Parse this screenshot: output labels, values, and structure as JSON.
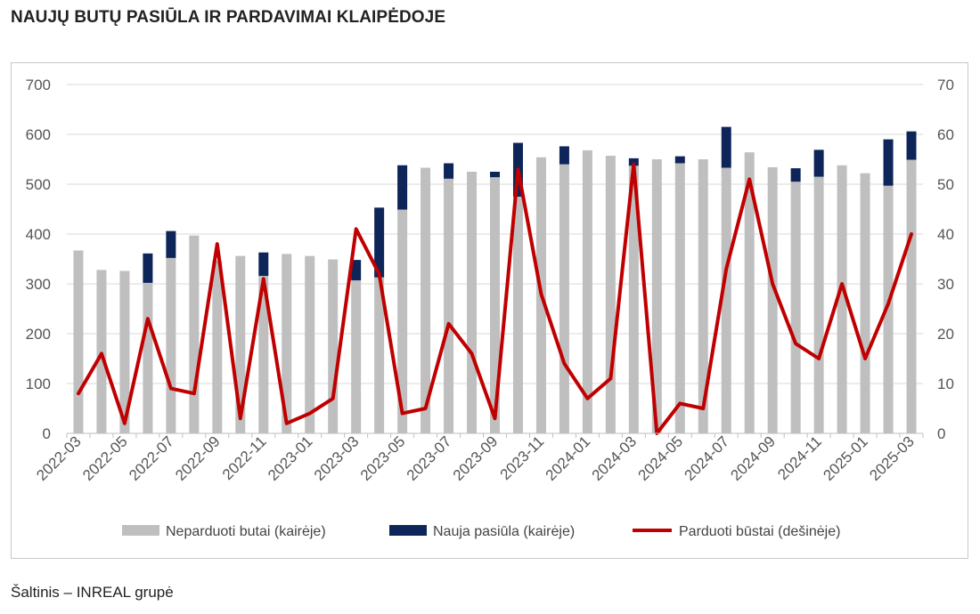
{
  "title": "NAUJŲ BUTŲ PASIŪLA IR PARDAVIMAI KLAIPĖDOJE",
  "source": "Šaltinis – INREAL grupė",
  "chart_data": {
    "type": "bar",
    "categories": [
      "2022-03",
      "2022-04",
      "2022-05",
      "2022-06",
      "2022-07",
      "2022-08",
      "2022-09",
      "2022-10",
      "2022-11",
      "2022-12",
      "2023-01",
      "2023-02",
      "2023-03",
      "2023-04",
      "2023-05",
      "2023-06",
      "2023-07",
      "2023-08",
      "2023-09",
      "2023-10",
      "2023-11",
      "2023-12",
      "2024-01",
      "2024-02",
      "2024-03",
      "2024-04",
      "2024-05",
      "2024-06",
      "2024-07",
      "2024-08",
      "2024-09",
      "2024-10",
      "2024-11",
      "2024-12",
      "2025-01",
      "2025-02",
      "2025-03"
    ],
    "tick_labels": [
      "2022-03",
      "2022-05",
      "2022-07",
      "2022-09",
      "2022-11",
      "2023-01",
      "2023-03",
      "2023-05",
      "2023-07",
      "2023-09",
      "2023-11",
      "2024-01",
      "2024-03",
      "2024-05",
      "2024-07",
      "2024-09",
      "2024-11",
      "2025-01",
      "2025-03"
    ],
    "y_left": {
      "min": 0,
      "max": 700,
      "ticks": [
        0,
        100,
        200,
        300,
        400,
        500,
        600,
        700
      ]
    },
    "y_right": {
      "min": 0,
      "max": 70,
      "ticks": [
        0,
        10,
        20,
        30,
        40,
        50,
        60,
        70
      ]
    },
    "grid": true,
    "legend_position": "bottom",
    "series": [
      {
        "name": "Neparduoti butai (kairėje)",
        "kind": "bar",
        "axis": "left",
        "color": "#bfbfbf",
        "values": [
          367,
          328,
          326,
          302,
          352,
          397,
          346,
          356,
          316,
          360,
          356,
          349,
          307,
          313,
          449,
          533,
          511,
          525,
          514,
          475,
          554,
          540,
          568,
          557,
          537,
          550,
          542,
          550,
          533,
          564,
          534,
          505,
          515,
          538,
          522,
          497,
          549
        ]
      },
      {
        "name": "Nauja pasiūla (kairėje)",
        "kind": "bar",
        "stacked": true,
        "axis": "left",
        "color": "#0d2559",
        "values": [
          0,
          0,
          0,
          59,
          54,
          0,
          0,
          0,
          47,
          0,
          0,
          0,
          41,
          140,
          89,
          0,
          31,
          0,
          11,
          108,
          0,
          36,
          0,
          0,
          15,
          0,
          14,
          0,
          82,
          0,
          0,
          27,
          54,
          0,
          0,
          93,
          57
        ]
      },
      {
        "name": "Parduoti būstai (dešinėje)",
        "kind": "line",
        "axis": "right",
        "color": "#c00000",
        "values": [
          8,
          16,
          2,
          23,
          9,
          8,
          38,
          3,
          31,
          2,
          4,
          7,
          41,
          32,
          4,
          5,
          22,
          16,
          3,
          53,
          28,
          14,
          7,
          11,
          54,
          0,
          6,
          5,
          33,
          51,
          30,
          18,
          15,
          30,
          15,
          26,
          40
        ]
      }
    ]
  }
}
